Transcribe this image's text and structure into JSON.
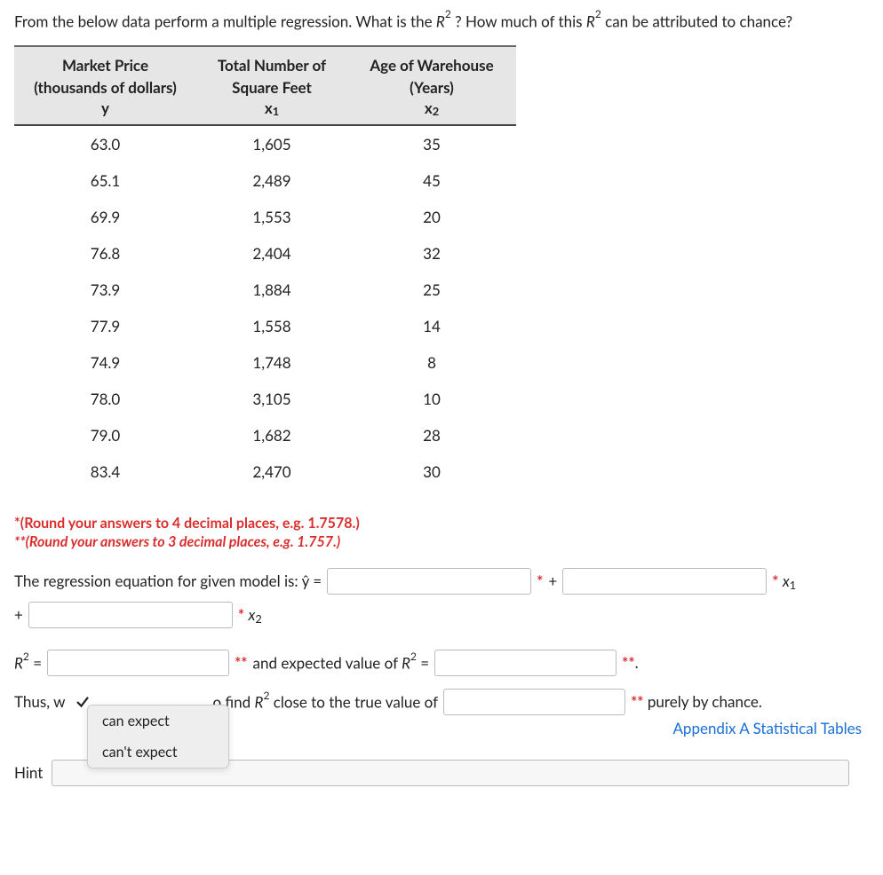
{
  "question": {
    "pre": "From the below data perform a multiple regression. What is the ",
    "mid": " ? How much of this ",
    "post": " can be attributed to chance?"
  },
  "table": {
    "headers": {
      "col1_l1": "Market Price",
      "col1_l2": "(thousands of dollars)",
      "col1_l3": "y",
      "col2_l1": "Total Number of",
      "col2_l2": "Square Feet",
      "col2_l3": "x",
      "col2_l3_sub": "1",
      "col3_l1": "Age of Warehouse",
      "col3_l2": "(Years)",
      "col3_l3": "x",
      "col3_l3_sub": "2"
    },
    "rows": [
      {
        "y": "63.0",
        "x1": "1,605",
        "x2": "35"
      },
      {
        "y": "65.1",
        "x1": "2,489",
        "x2": "45"
      },
      {
        "y": "69.9",
        "x1": "1,553",
        "x2": "20"
      },
      {
        "y": "76.8",
        "x1": "2,404",
        "x2": "32"
      },
      {
        "y": "73.9",
        "x1": "1,884",
        "x2": "25"
      },
      {
        "y": "77.9",
        "x1": "1,558",
        "x2": "14"
      },
      {
        "y": "74.9",
        "x1": "1,748",
        "x2": "8"
      },
      {
        "y": "78.0",
        "x1": "3,105",
        "x2": "10"
      },
      {
        "y": "79.0",
        "x1": "1,682",
        "x2": "28"
      },
      {
        "y": "83.4",
        "x1": "2,470",
        "x2": "30"
      }
    ]
  },
  "notes": {
    "star1": "*(Round your answers to 4 decimal places, e.g. 1.7578.)",
    "star2": "**(Round your answers to 3 decimal places, e.g. 1.757.)"
  },
  "eq": {
    "label_pre": "The regression equation for given model is: ŷ =",
    "star": "*",
    "plus": "+",
    "x1_label": "x",
    "x1_sub": "1",
    "x2_label": "x",
    "x2_sub": "2"
  },
  "r2": {
    "R": "R",
    "eq": "=",
    "star2": "**",
    "between": " and expected value of ",
    "period": "."
  },
  "thus": {
    "pre": "Thus, w",
    "mid": "o find ",
    "mid2": " close to the true value of ",
    "post": " purely by chance."
  },
  "dropdown": {
    "opt1": "can expect",
    "opt2": "can't expect"
  },
  "link": "Appendix A Statistical Tables",
  "hint_label": "Hint"
}
